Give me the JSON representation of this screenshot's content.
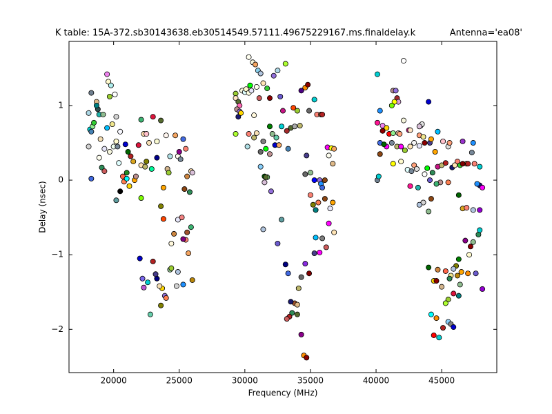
{
  "chart_data": {
    "type": "scatter",
    "title": "K table: 15A-372.sb30143638.eb30514549.57111.49675229167.ms.finaldelay.k",
    "title_right": "Antenna='ea08'",
    "x_label": "Frequency (MHz)",
    "y_label": "Delay (nsec)",
    "xlim": [
      16600,
      49200
    ],
    "ylim": [
      -2.58,
      1.86
    ],
    "xticks": [
      20000,
      25000,
      30000,
      35000,
      40000,
      45000
    ],
    "yticks": [
      {
        "value": -2,
        "label": "−2"
      },
      {
        "value": -1,
        "label": "−1"
      },
      0,
      1
    ],
    "marker_edge": "#000000",
    "x": [
      18100,
      18300,
      18200,
      18300,
      18400,
      18500,
      18300,
      18100,
      18700,
      18800,
      18900,
      18700,
      19200,
      19500,
      19600,
      19800,
      19700,
      19500,
      19900,
      20100,
      20200,
      19100,
      19300,
      18900,
      19000,
      19300,
      19700,
      20000,
      20200,
      20300,
      20500,
      20400,
      20200,
      20500,
      20700,
      20800,
      21000,
      20900,
      21100,
      21300,
      21500,
      21200,
      21000,
      21600,
      21700,
      21900,
      22100,
      22300,
      22100,
      22500,
      22500,
      22700,
      22400,
      22900,
      22100,
      23000,
      23300,
      23300,
      23600,
      23800,
      23600,
      23800,
      24000,
      24100,
      24200,
      24300,
      24700,
      24900,
      25000,
      25100,
      25300,
      25500,
      25400,
      25600,
      25800,
      25900,
      26000,
      25900,
      25700,
      25500,
      25600,
      25300,
      24900,
      25200,
      24600,
      24400,
      24300,
      24400,
      24900,
      25300,
      24800,
      26000,
      23700,
      23900,
      24000,
      23500,
      23300,
      23200,
      23000,
      22000,
      22200,
      22600,
      22300,
      23600,
      22800,
      29300,
      29300,
      29500,
      29600,
      29400,
      29600,
      29500,
      29700,
      29300,
      29800,
      30000,
      30100,
      30300,
      30400,
      30500,
      30300,
      30600,
      30800,
      31000,
      31200,
      31100,
      30900,
      31400,
      31700,
      31900,
      32200,
      32500,
      32700,
      33100,
      30700,
      30300,
      30900,
      30700,
      30200,
      31200,
      31400,
      31900,
      32100,
      32400,
      32300,
      32800,
      32900,
      33200,
      33500,
      33700,
      34000,
      33800,
      34200,
      34300,
      34600,
      34800,
      35300,
      34900,
      35500,
      35800,
      35900,
      33300,
      32600,
      31900,
      31600,
      31200,
      31500,
      31700,
      31600,
      32000,
      32800,
      32500,
      31400,
      31500,
      34600,
      34700,
      35000,
      35300,
      35700,
      35800,
      35900,
      36100,
      36100,
      36300,
      36400,
      36600,
      36800,
      36700,
      36500,
      36700,
      36800,
      36400,
      36200,
      35900,
      35700,
      35400,
      35300,
      35000,
      35200,
      35400,
      35600,
      34900,
      34600,
      34300,
      34100,
      33800,
      34000,
      33500,
      33600,
      34000,
      33400,
      33200,
      33100,
      33300,
      34300,
      34500,
      34700,
      40100,
      42100,
      41300,
      41500,
      41600,
      41700,
      41400,
      41200,
      40300,
      40100,
      40500,
      40800,
      40500,
      41000,
      41300,
      42100,
      41700,
      41800,
      42500,
      42600,
      43400,
      43500,
      43300,
      44000,
      44700,
      44100,
      40300,
      40800,
      40600,
      41200,
      41600,
      41900,
      42200,
      42600,
      42900,
      43300,
      43600,
      43300,
      43700,
      44200,
      44500,
      45100,
      45500,
      45600,
      46200,
      46600,
      46900,
      47400,
      40100,
      40200,
      40300,
      41300,
      41900,
      42400,
      42700,
      42900,
      43100,
      42600,
      43200,
      43700,
      43900,
      44100,
      44300,
      44700,
      45000,
      45300,
      45800,
      46000,
      46400,
      46600,
      47000,
      47300,
      47500,
      47900,
      47900,
      47700,
      48100,
      46300,
      45500,
      44900,
      44600,
      44200,
      43600,
      43300,
      44000,
      46600,
      46900,
      47400,
      47900,
      47800,
      47900,
      47400,
      47200,
      46800,
      47100,
      46300,
      46100,
      46500,
      45900,
      46200,
      45700,
      45300,
      44700,
      44000,
      44400,
      44600,
      45000,
      45600,
      46400,
      47000,
      47600,
      48100,
      46300,
      45900,
      45500,
      45300,
      44200,
      44600,
      45100,
      45500,
      45700,
      45900,
      44400,
      44800
    ],
    "values": [
      0.9,
      1.17,
      0.68,
      0.65,
      0.72,
      0.77,
      0.02,
      0.45,
      1.05,
      0.95,
      0.88,
      1.0,
      0.88,
      1.42,
      1.32,
      1.27,
      1.12,
      0.7,
      0.75,
      1.15,
      0.85,
      0.17,
      0.12,
      0.3,
      0.55,
      0.42,
      0.38,
      0.45,
      0.52,
      0.45,
      0.65,
      0.23,
      -0.27,
      -0.15,
      0.05,
      -0.02,
      0.1,
      0.48,
      0.38,
      0.32,
      0.25,
      -0.08,
      0.02,
      0.0,
      0.05,
      0.47,
      0.81,
      0.62,
      0.2,
      0.25,
      0.62,
      0.5,
      0.18,
      0.15,
      -0.24,
      0.85,
      0.52,
      0.3,
      0.8,
      -0.1,
      -0.35,
      -0.52,
      0.6,
      0.15,
      0.1,
      0.32,
      0.6,
      0.32,
      0.38,
      0.28,
      0.55,
      0.42,
      -0.12,
      0.05,
      -0.16,
      0.12,
      0.1,
      -0.63,
      -0.98,
      -0.8,
      -0.7,
      -0.79,
      -0.53,
      -0.5,
      -0.72,
      -0.85,
      -1.2,
      -1.18,
      -1.23,
      -1.4,
      -1.42,
      -1.34,
      -1.45,
      -1.55,
      -1.58,
      -1.42,
      -1.32,
      -1.26,
      -1.09,
      -1.05,
      -1.32,
      -1.37,
      -1.44,
      -1.68,
      -1.8,
      1.16,
      1.1,
      1.05,
      1.0,
      0.95,
      0.92,
      0.85,
      0.9,
      0.62,
      1.2,
      1.18,
      1.22,
      1.17,
      1.27,
      1.2,
      1.65,
      1.58,
      1.55,
      1.47,
      1.43,
      1.1,
      1.25,
      1.3,
      1.23,
      1.1,
      1.4,
      1.47,
      1.12,
      1.56,
      0.87,
      0.62,
      0.63,
      0.57,
      0.45,
      0.38,
      0.52,
      0.72,
      0.62,
      0.57,
      0.47,
      0.72,
      0.93,
      0.66,
      0.7,
      0.97,
      0.93,
      0.72,
      0.73,
      1.2,
      1.24,
      1.28,
      1.08,
      0.93,
      0.88,
      0.88,
      0.88,
      0.42,
      0.47,
      0.35,
      0.42,
      0.18,
      0.05,
      0.04,
      0.04,
      -0.15,
      -0.53,
      -0.85,
      -0.66,
      -0.03,
      0.08,
      0.33,
      0.1,
      0.0,
      0.0,
      -0.05,
      -0.1,
      0.0,
      -0.25,
      0.44,
      0.33,
      0.43,
      0.42,
      0.22,
      -0.38,
      -0.3,
      -0.7,
      -0.58,
      -0.9,
      -0.78,
      -0.97,
      -0.77,
      -0.98,
      -0.2,
      -0.33,
      -0.4,
      -0.3,
      -1.25,
      -1.12,
      -1.3,
      -1.45,
      -1.65,
      -1.67,
      -1.63,
      -1.78,
      -1.8,
      -1.83,
      -1.86,
      -1.13,
      -1.25,
      -2.07,
      -2.35,
      -2.38,
      1.42,
      1.6,
      1.2,
      1.2,
      1.1,
      1.05,
      1.05,
      1.0,
      0.93,
      0.77,
      0.73,
      0.7,
      0.66,
      0.62,
      0.63,
      0.8,
      0.63,
      0.62,
      0.67,
      0.67,
      0.73,
      0.75,
      0.72,
      1.05,
      0.65,
      0.5,
      0.5,
      0.45,
      0.48,
      0.5,
      0.45,
      0.45,
      0.4,
      0.45,
      0.5,
      0.6,
      0.58,
      0.46,
      0.5,
      0.55,
      0.38,
      0.52,
      0.45,
      0.5,
      0.25,
      0.52,
      0.22,
      0.5,
      0.0,
      0.05,
      0.35,
      0.22,
      0.25,
      0.14,
      0.12,
      0.2,
      0.15,
      -0.08,
      -0.1,
      0.08,
      0.16,
      0.0,
      0.1,
      0.18,
      0.2,
      0.23,
      0.17,
      0.2,
      0.2,
      0.22,
      0.22,
      0.37,
      0.22,
      0.18,
      -0.07,
      -0.05,
      -0.1,
      -0.2,
      -0.03,
      -0.03,
      -0.05,
      -0.25,
      -0.3,
      -0.33,
      -0.42,
      -0.38,
      -0.37,
      -0.4,
      -0.4,
      -0.73,
      -0.67,
      -0.83,
      -0.89,
      -0.81,
      -1.0,
      -1.06,
      -1.15,
      -1.23,
      -1.19,
      -1.28,
      -1.28,
      -1.22,
      -1.2,
      -1.17,
      -1.35,
      -1.35,
      -1.43,
      -1.32,
      -1.4,
      -1.25,
      -1.25,
      -1.46,
      -1.55,
      -1.52,
      -1.6,
      -1.65,
      -1.8,
      -1.85,
      -1.98,
      -1.9,
      -1.93,
      -1.97,
      -2.08,
      -2.11
    ],
    "colors": [
      "#add8e6",
      "#708090",
      "#00ced1",
      "#4682b4",
      "#90ee90",
      "#32cd32",
      "#4169e1",
      "#d3d3d3",
      "#deb887",
      "#2f4f4f",
      "#20b2aa",
      "#008080",
      "#8fbc8f",
      "#ee82ee",
      "#fffacd",
      "#afeeee",
      "#9acd32",
      "#00bfff",
      "#f0e68c",
      "#ffffff",
      "#d3d3d3",
      "#2e8b57",
      "#cd5c5c",
      "#fffff0",
      "#f5deb3",
      "#e6e6fa",
      "#f5f5dc",
      "#f0fff0",
      "#fffacd",
      "#778899",
      "#f8f8ff",
      "#e0ffff",
      "#5f9ea0",
      "#000000",
      "#ff6347",
      "#ff7f50",
      "#228b22",
      "#0000cd",
      "#006400",
      "#b22222",
      "#daa520",
      "#ffd700",
      "#00ffff",
      "#ffa500",
      "#bc8f8f",
      "#dc143c",
      "#3cb371",
      "#ffdead",
      "#ffe4b5",
      "#808000",
      "#ffc0cb",
      "#f5deb3",
      "#bdb76b",
      "#00fa9a",
      "#7cfc00",
      "#dc143c",
      "#fafad2",
      "#00008b",
      "#556b2f",
      "#ffa500",
      "#808000",
      "#ff4500",
      "#fff5ee",
      "#d2b48c",
      "#9acd32",
      "#b0e0e6",
      "#f4a460",
      "#fffaf0",
      "#8b008b",
      "#778899",
      "#4169e1",
      "#fa8072",
      "#8b4513",
      "#cd853f",
      "#2e8b57",
      "#ffdead",
      "#d8bfd8",
      "#3cb371",
      "#f4a460",
      "#fa8072",
      "#a0522d",
      "#800080",
      "#e6e6fa",
      "#f08080",
      "#cd853f",
      "#fff8dc",
      "#8fbc8f",
      "#9acd32",
      "#b0c4de",
      "#1e90ff",
      "#d3d3d3",
      "#b8860b",
      "#ffd700",
      "#9370db",
      "#ff7f50",
      "#f5deb3",
      "#000080",
      "#483d8b",
      "#b22222",
      "#0000cd",
      "#7b68ee",
      "#00ced1",
      "#ba55d3",
      "#808000",
      "#66cdaa",
      "#9acd32",
      "#ffe4c4",
      "#556b2f",
      "#ff69b4",
      "#bc8f8f",
      "#9370db",
      "#191970",
      "#ffd700",
      "#adff2f",
      "#f5f5dc",
      "#e0ffff",
      "#fffacd",
      "#ffffe0",
      "#00ff00",
      "#e6e6fa",
      "#fffff0",
      "#f5f5dc",
      "#f4a460",
      "#87ceeb",
      "#b0c4de",
      "#cd5c5c",
      "#fffff0",
      "#ffe4b5",
      "#32cd32",
      "#8b0000",
      "#9370db",
      "#add8e6",
      "#6a5acd",
      "#adff2f",
      "#fff8dc",
      "#fa8072",
      "#f5deb3",
      "#bdb76b",
      "#b0e0e6",
      "#696969",
      "#808080",
      "#008000",
      "#8fbc8f",
      "#66cdaa",
      "#0000cd",
      "#00ced1",
      "#c71585",
      "#a52a2a",
      "#556b2f",
      "#ff4500",
      "#9acd32",
      "#a9a9a9",
      "#bdb76b",
      "#4b0082",
      "#ff8c00",
      "#8b0000",
      "#00ced1",
      "#696969",
      "#fa8072",
      "#a0522d",
      "#b22222",
      "#4682b4",
      "#f4a460",
      "#bc8f8f",
      "#00ff00",
      "#87cefa",
      "#006400",
      "#98fb98",
      "#556b2f",
      "#9370db",
      "#5f9ea0",
      "#6a5acd",
      "#b0c4de",
      "#d8bfd8",
      "#696969",
      "#483d8b",
      "#8fbc8f",
      "#0000ff",
      "#9370db",
      "#1e90ff",
      "#4169e1",
      "#8b4513",
      "#8b4513",
      "#ff00ff",
      "#fffff0",
      "#ffff00",
      "#f4a460",
      "#deb887",
      "#e6e6fa",
      "#ffa500",
      "#ffe4b5",
      "#ff00ff",
      "#cd5c5c",
      "#808080",
      "#ff00ff",
      "#00bfff",
      "#483d8b",
      "#fa8072",
      "#808000",
      "#008080",
      "#ff7f50",
      "#800000",
      "#8a2be2",
      "#696969",
      "#bdb76b",
      "#a0522d",
      "#deb887",
      "#191970",
      "#2e8b57",
      "#556b2f",
      "#b22222",
      "#cd5c5c",
      "#000080",
      "#4169e1",
      "#8b008b",
      "#ff8c00",
      "#8b0000",
      "#00ced1",
      "#ffffff",
      "#bc8f8f",
      "#9370db",
      "#a52a2a",
      "#dda0dd",
      "#ffff00",
      "#7cfc00",
      "#1e90ff",
      "#ff1493",
      "#ee82ee",
      "#ffd700",
      "#8b0000",
      "#ff0000",
      "#90ee90",
      "#f5f5dc",
      "#ffdab9",
      "#ffa07a",
      "#c71585",
      "#ffe4c4",
      "#b0c4de",
      "#dcdcdc",
      "#d8bfd8",
      "#0000cd",
      "#00bfff",
      "#483d8b",
      "#4169e1",
      "#ff00ff",
      "#006400",
      "#778899",
      "#bdb76b",
      "#ff00ff",
      "#9acd32",
      "#ffe4b5",
      "#f5f5f5",
      "#ffa07a",
      "#f0e68c",
      "#e6e6fa",
      "#8b0000",
      "#ffa500",
      "#ffa500",
      "#ffc0cb",
      "#dcdcdc",
      "#ffa07a",
      "#fa8072",
      "#9932cc",
      "#cd853f",
      "#1e90ff",
      "#708090",
      "#00ced1",
      "#8b4513",
      "#ffff00",
      "#fffacd",
      "#e0ffff",
      "#778899",
      "#ffa07a",
      "#dcdcdc",
      "#ff1493",
      "#20b2aa",
      "#ffffff",
      "#00ff00",
      "#6a5acd",
      "#2e8b57",
      "#c71585",
      "#bdb76b",
      "#b22222",
      "#191970",
      "#ffe4b5",
      "#32cd32",
      "#800000",
      "#b22222",
      "#778899",
      "#fa8072",
      "#00ced1",
      "#191970",
      "#1e90ff",
      "#ff00ff",
      "#006400",
      "#ff7f50",
      "#bc8f8f",
      "#3cb371",
      "#8b4513",
      "#d3d3d3",
      "#b0c4de",
      "#8fbc8f",
      "#daa520",
      "#fa8072",
      "#b0c4de",
      "#9400d3",
      "#2e8b57",
      "#00ced1",
      "#8fbc8f",
      "#8b0000",
      "#8b008b",
      "#fffacd",
      "#008000",
      "#808000",
      "#ffa500",
      "#b0c4de",
      "#b8860b",
      "#f0e68c",
      "#ff6347",
      "#cd853f",
      "#006400",
      "#ffd700",
      "#8b0000",
      "#d2b48c",
      "#2e8b57",
      "#8fbc8f",
      "#ff8c00",
      "#6a5acd",
      "#9400d3",
      "#008080",
      "#dc143c",
      "#9acd32",
      "#adff2f",
      "#00ffff",
      "#ff8c00",
      "#b22222",
      "#87cefa",
      "#808080",
      "#0000cd",
      "#ff0000",
      "#00ced1"
    ]
  }
}
